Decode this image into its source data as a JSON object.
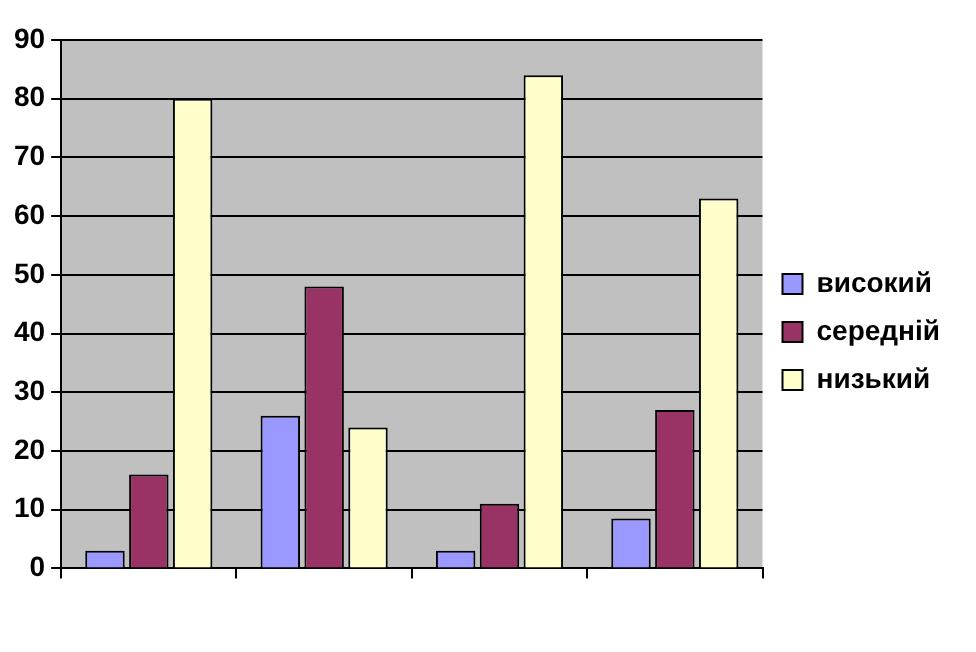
{
  "chart_data": {
    "type": "bar",
    "categories": [
      null,
      null,
      null,
      null
    ],
    "series": [
      {
        "name": "високий",
        "color": "#9999ff",
        "values": [
          3,
          26,
          3,
          8.5
        ]
      },
      {
        "name": "середній",
        "color": "#993366",
        "values": [
          16,
          48,
          11,
          27
        ]
      },
      {
        "name": "низький",
        "color": "#ffffcc",
        "values": [
          80,
          24,
          84,
          63
        ]
      }
    ],
    "ylim": [
      0,
      90
    ],
    "yticks": [
      0,
      10,
      20,
      30,
      40,
      50,
      60,
      70,
      80,
      90
    ],
    "grid": "y",
    "legend": "right"
  }
}
